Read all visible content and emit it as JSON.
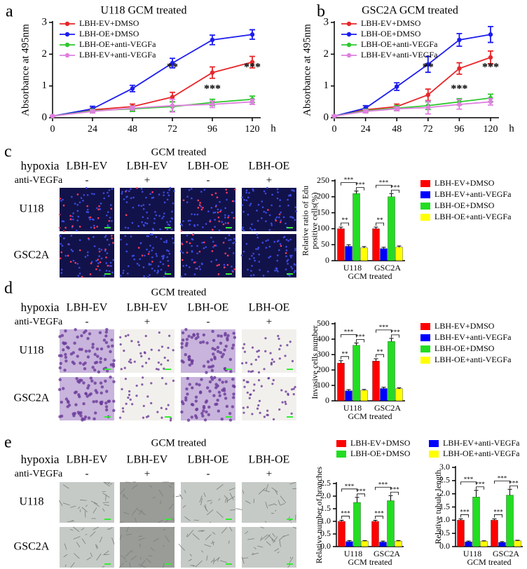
{
  "panel_labels": [
    "a",
    "b",
    "c",
    "d",
    "e"
  ],
  "image_panels": [
    {
      "title": "GCM treated",
      "row_header": "hypoxia",
      "columns": [
        "LBH-EV",
        "LBH-EV",
        "LBH-OE",
        "LBH-OE"
      ],
      "treatment_header": "anti-VEGFa",
      "treatment": [
        "-",
        "+",
        "-",
        "+"
      ],
      "rows": [
        "U118",
        "GSC2A"
      ]
    },
    {
      "title": "GCM treated",
      "row_header": "hypoxia",
      "columns": [
        "LBH-EV",
        "LBH-EV",
        "LBH-OE",
        "LBH-OE"
      ],
      "treatment_header": "anti-VEGFa",
      "treatment": [
        "-",
        "+",
        "-",
        "+"
      ],
      "rows": [
        "U118",
        "GSC2A"
      ]
    },
    {
      "title": "GCM treated",
      "row_header": "hypoxia",
      "columns": [
        "LBH-EV",
        "LBH-EV",
        "LBH-OE",
        "LBH-OE"
      ],
      "treatment_header": "anti-VEGFa",
      "treatment": [
        "-",
        "+",
        "-",
        "+"
      ],
      "rows": [
        "U118",
        "GSC2A"
      ]
    }
  ],
  "chart_data": [
    {
      "type": "line",
      "title": "U118 GCM treated",
      "y_label": "Absorbance at 495nm",
      "x_label": "h",
      "legend": "upper left",
      "x": [
        0,
        24,
        48,
        72,
        96,
        120
      ],
      "xlim": [
        0,
        120
      ],
      "xticks": [
        0,
        24,
        48,
        72,
        96,
        120
      ],
      "ylim": [
        0,
        3
      ],
      "yticks": [
        0,
        1,
        2,
        3
      ],
      "series": [
        {
          "name": "LBH-EV+DMSO",
          "color": "#e8262a",
          "values": [
            0.05,
            0.25,
            0.35,
            0.65,
            1.42,
            1.75
          ],
          "errors": [
            0.02,
            0.05,
            0.08,
            0.15,
            0.18,
            0.18
          ]
        },
        {
          "name": "LBH-OE+DMSO",
          "color": "#1c1cf0",
          "values": [
            0.05,
            0.28,
            0.92,
            1.72,
            2.45,
            2.62
          ],
          "errors": [
            0.02,
            0.08,
            0.1,
            0.15,
            0.15,
            0.15
          ]
        },
        {
          "name": "LBH-OE+anti-VEGFa",
          "color": "#2ec82e",
          "values": [
            0.05,
            0.22,
            0.28,
            0.35,
            0.48,
            0.58
          ],
          "errors": [
            0.02,
            0.05,
            0.08,
            0.15,
            0.1,
            0.1
          ]
        },
        {
          "name": "LBH-EV+anti-VEGFa",
          "color": "#e080e0",
          "values": [
            0.05,
            0.2,
            0.3,
            0.38,
            0.42,
            0.5
          ],
          "errors": [
            0.02,
            0.05,
            0.06,
            0.2,
            0.1,
            0.08
          ]
        }
      ],
      "annotations": [
        {
          "x": 72,
          "text": "**"
        },
        {
          "x": 96,
          "text": "***"
        },
        {
          "x": 120,
          "text": "***"
        }
      ]
    },
    {
      "type": "line",
      "title": "GSC2A GCM treated",
      "y_label": "Absorbance at 495nm",
      "x_label": "h",
      "legend": "upper left",
      "x": [
        0,
        24,
        48,
        72,
        96,
        120
      ],
      "xlim": [
        0,
        120
      ],
      "xticks": [
        0,
        24,
        48,
        72,
        96,
        120
      ],
      "ylim": [
        0,
        3
      ],
      "yticks": [
        0,
        1,
        2,
        3
      ],
      "series": [
        {
          "name": "LBH-EV+DMSO",
          "color": "#e8262a",
          "values": [
            0.05,
            0.25,
            0.35,
            0.72,
            1.55,
            1.9
          ],
          "errors": [
            0.02,
            0.05,
            0.08,
            0.18,
            0.18,
            0.2
          ]
        },
        {
          "name": "LBH-OE+DMSO",
          "color": "#1c1cf0",
          "values": [
            0.05,
            0.3,
            0.98,
            1.68,
            2.45,
            2.62
          ],
          "errors": [
            0.02,
            0.08,
            0.12,
            0.25,
            0.2,
            0.25
          ]
        },
        {
          "name": "LBH-OE+anti-VEGFa",
          "color": "#2ec82e",
          "values": [
            0.05,
            0.22,
            0.3,
            0.38,
            0.5,
            0.62
          ],
          "errors": [
            0.02,
            0.05,
            0.08,
            0.12,
            0.1,
            0.12
          ]
        },
        {
          "name": "LBH-EV+anti-VEGFa",
          "color": "#e080e0",
          "values": [
            0.05,
            0.2,
            0.28,
            0.32,
            0.42,
            0.5
          ],
          "errors": [
            0.02,
            0.05,
            0.06,
            0.2,
            0.15,
            0.1
          ]
        }
      ],
      "annotations": [
        {
          "x": 72,
          "text": "**"
        },
        {
          "x": 96,
          "text": "***"
        },
        {
          "x": 120,
          "text": "***"
        }
      ]
    },
    {
      "type": "bar",
      "y_label": [
        "Relative  ratio of  Edu",
        "positive cells(%)"
      ],
      "x_label": "GCM treated",
      "legend": "right",
      "categories": [
        "U118",
        "GSC2A"
      ],
      "ylim": [
        0,
        250
      ],
      "yticks": [
        0,
        50,
        100,
        150,
        200,
        250
      ],
      "series": [
        {
          "name": "LBH-EV+DMSO",
          "color": "#ff0000",
          "values": [
            100,
            100
          ],
          "errors": [
            5,
            5
          ]
        },
        {
          "name": "LBH-EV+anti-VEGFa",
          "color": "#0000ff",
          "values": [
            45,
            38
          ],
          "errors": [
            5,
            4
          ]
        },
        {
          "name": "LBH-OE+DMSO",
          "color": "#22dd22",
          "values": [
            210,
            200
          ],
          "errors": [
            8,
            10
          ]
        },
        {
          "name": "LBH-OE+anti-VEGFa",
          "color": "#ffff00",
          "values": [
            40,
            42
          ],
          "errors": [
            4,
            4
          ]
        }
      ],
      "significance": [
        [
          "**",
          "***",
          "***"
        ],
        [
          "**",
          "***",
          "***"
        ]
      ]
    },
    {
      "type": "bar",
      "y_label": [
        "Invasive cells number"
      ],
      "x_label": "GCM treated",
      "legend": "right",
      "categories": [
        "U118",
        "GSC2A"
      ],
      "ylim": [
        0,
        500
      ],
      "yticks": [
        0,
        100,
        200,
        300,
        400,
        500
      ],
      "series": [
        {
          "name": "LBH-EV+DMSO",
          "color": "#ff0000",
          "values": [
            245,
            258
          ],
          "errors": [
            15,
            15
          ]
        },
        {
          "name": "LBH-EV+anti-VEGFa",
          "color": "#0000ff",
          "values": [
            65,
            80
          ],
          "errors": [
            8,
            8
          ]
        },
        {
          "name": "LBH-OE+DMSO",
          "color": "#22dd22",
          "values": [
            360,
            385
          ],
          "errors": [
            15,
            20
          ]
        },
        {
          "name": "LBH-OE+anti-VEGFa",
          "color": "#ffff00",
          "values": [
            68,
            78
          ],
          "errors": [
            6,
            6
          ]
        }
      ],
      "significance": [
        [
          "**",
          "***",
          "***"
        ],
        [
          "**",
          "***",
          "***"
        ]
      ]
    },
    {
      "type": "bar",
      "y_label": [
        "Relative number of  branches"
      ],
      "x_label": "GCM treated",
      "legend": "top",
      "categories": [
        "U118",
        "GSC2A"
      ],
      "ylim": [
        0,
        2.5
      ],
      "yticks": [
        {
          "value": 0,
          "label": "0.0"
        },
        {
          "value": 0.5,
          "label": "0.5"
        },
        {
          "value": 1,
          "label": "1.0"
        },
        {
          "value": 1.5,
          "label": "1.5"
        },
        {
          "value": 2,
          "label": "2.0"
        },
        {
          "value": 2.5,
          "label": "2.5"
        }
      ],
      "series": [
        {
          "name": "LBH-EV+DMSO",
          "color": "#ff0000",
          "values": [
            1.0,
            1.0
          ],
          "errors": [
            0.04,
            0.04
          ]
        },
        {
          "name": "LBH-EV+anti-VEGFa",
          "color": "#0000ff",
          "values": [
            0.2,
            0.18
          ],
          "errors": [
            0.04,
            0.04
          ]
        },
        {
          "name": "LBH-OE+DMSO",
          "color": "#22dd22",
          "values": [
            1.75,
            1.82
          ],
          "errors": [
            0.2,
            0.2
          ]
        },
        {
          "name": "LBH-OE+anti-VEGFa",
          "color": "#ffff00",
          "values": [
            0.22,
            0.22
          ],
          "errors": [
            0.02,
            0.02
          ]
        }
      ],
      "significance": [
        [
          "***",
          "***",
          "***"
        ],
        [
          "***",
          "***",
          "***"
        ]
      ]
    },
    {
      "type": "bar",
      "y_label": [
        "Relative tubule length"
      ],
      "x_label": "GCM treated",
      "categories": [
        "U118",
        "GSC2A"
      ],
      "ylim": [
        0,
        3
      ],
      "yticks": [
        {
          "value": 0,
          "label": "0.0"
        },
        {
          "value": 0.5,
          "label": "0.5"
        },
        {
          "value": 1,
          "label": "1.0"
        },
        {
          "value": 1.5,
          "label": "1.5"
        },
        {
          "value": 2,
          "label": "2.0"
        },
        {
          "value": 2.5,
          "label": "2.5"
        },
        {
          "value": 3,
          "label": "3.0"
        }
      ],
      "series": [
        {
          "color": "#ff0000",
          "values": [
            1.0,
            1.0
          ],
          "errors": [
            0.05,
            0.05
          ]
        },
        {
          "color": "#0000ff",
          "values": [
            0.18,
            0.16
          ],
          "errors": [
            0.03,
            0.03
          ]
        },
        {
          "color": "#22dd22",
          "values": [
            1.88,
            1.95
          ],
          "errors": [
            0.25,
            0.22
          ]
        },
        {
          "color": "#ffff00",
          "values": [
            0.2,
            0.22
          ],
          "errors": [
            0.02,
            0.02
          ]
        }
      ],
      "significance": [
        [
          "***",
          "***",
          "***"
        ],
        [
          "***",
          "***",
          "***"
        ]
      ]
    }
  ]
}
